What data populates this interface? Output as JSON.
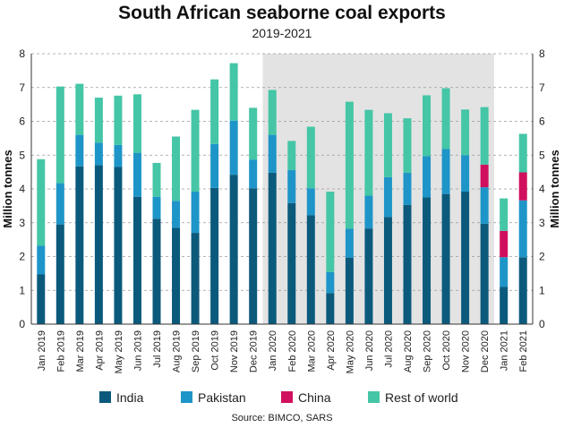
{
  "chart_data": {
    "type": "bar",
    "stacked": true,
    "title": "South African seaborne coal exports",
    "subtitle": "2019-2021",
    "ylabel_left": "Million tonnes",
    "ylabel_right": "Million tonnes",
    "ylim": [
      0,
      8
    ],
    "yticks": [
      0,
      1,
      2,
      3,
      4,
      5,
      6,
      7,
      8
    ],
    "grid": true,
    "legend_position": "bottom",
    "source": "Source: BIMCO, SARS",
    "highlight": {
      "from": "Jan 2020",
      "to": "Dec 2020",
      "color": "#e3e3e3"
    },
    "categories": [
      "Jan 2019",
      "Feb 2019",
      "Mar 2019",
      "Apr 2019",
      "May 2019",
      "Jun 2019",
      "Jul 2019",
      "Aug 2019",
      "Sep 2019",
      "Oct 2019",
      "Nov 2019",
      "Dec 2019",
      "Jan 2020",
      "Feb 2020",
      "Mar 2020",
      "Apr 2020",
      "May 2020",
      "Jun 2020",
      "Jul 2020",
      "Aug 2020",
      "Sep 2020",
      "Oct 2020",
      "Nov 2020",
      "Dec 2020",
      "Jan 2021",
      "Feb 2021"
    ],
    "series": [
      {
        "name": "India",
        "color": "#0b5a7c",
        "values": [
          1.47,
          2.95,
          4.67,
          4.7,
          4.65,
          3.77,
          3.12,
          2.85,
          2.7,
          4.03,
          4.42,
          4.02,
          4.48,
          3.58,
          3.22,
          0.92,
          1.97,
          2.83,
          3.17,
          3.53,
          3.75,
          3.85,
          3.92,
          2.97,
          1.1,
          1.98
        ]
      },
      {
        "name": "Pakistan",
        "color": "#1e95c8",
        "values": [
          0.85,
          1.22,
          0.93,
          0.67,
          0.65,
          1.3,
          0.65,
          0.8,
          1.22,
          1.3,
          1.6,
          0.85,
          1.12,
          0.98,
          0.8,
          0.62,
          0.85,
          0.97,
          1.18,
          0.95,
          1.22,
          1.33,
          1.08,
          1.08,
          0.88,
          1.68
        ]
      },
      {
        "name": "China",
        "color": "#d0105e",
        "values": [
          0,
          0,
          0,
          0,
          0,
          0,
          0,
          0,
          0,
          0,
          0,
          0,
          0,
          0,
          0,
          0,
          0,
          0,
          0,
          0,
          0,
          0,
          0,
          0.67,
          0.78,
          0.83
        ]
      },
      {
        "name": "Rest of world",
        "color": "#45c6a6",
        "values": [
          2.56,
          2.86,
          1.51,
          1.33,
          1.46,
          1.73,
          1.0,
          1.9,
          2.42,
          1.91,
          1.7,
          1.53,
          1.33,
          0.86,
          1.82,
          2.38,
          3.76,
          2.54,
          1.89,
          1.61,
          1.8,
          1.8,
          1.35,
          1.7,
          0.96,
          1.14
        ]
      }
    ]
  }
}
